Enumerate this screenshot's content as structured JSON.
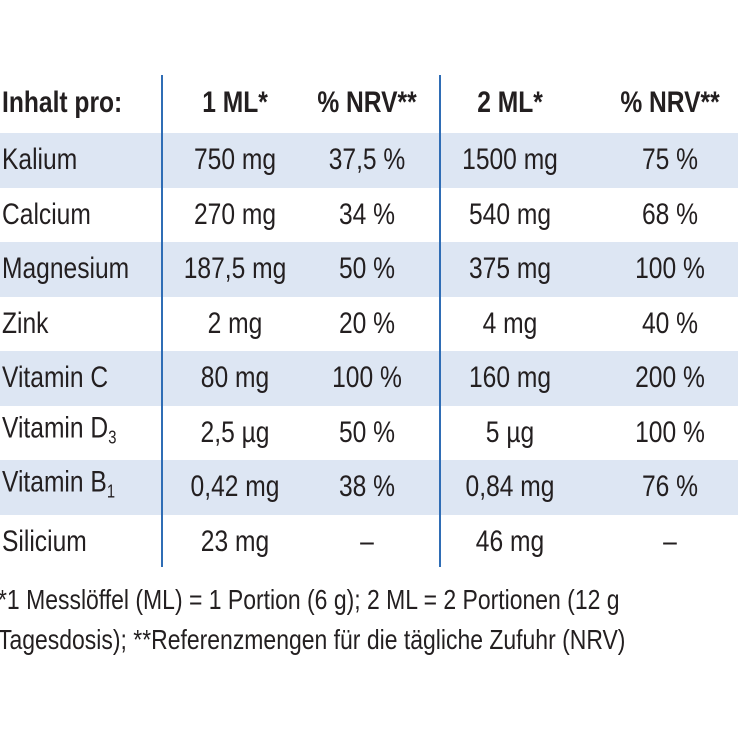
{
  "table": {
    "header": [
      "Inhalt pro:",
      "1 ML*",
      "% NRV**",
      "2 ML*",
      "% NRV**"
    ],
    "rows": [
      {
        "name": "Kalium",
        "cells": [
          "750 mg",
          "37,5 %",
          "1500 mg",
          "75 %"
        ]
      },
      {
        "name": "Calcium",
        "cells": [
          "270 mg",
          "34 %",
          "540 mg",
          "68 %"
        ]
      },
      {
        "name": "Magnesium",
        "cells": [
          "187,5 mg",
          "50 %",
          "375 mg",
          "100 %"
        ]
      },
      {
        "name": "Zink",
        "cells": [
          "2 mg",
          "20 %",
          "4 mg",
          "40 %"
        ]
      },
      {
        "name": "Vitamin C",
        "cells": [
          "80 mg",
          "100 %",
          "160 mg",
          "200 %"
        ]
      },
      {
        "name": "Vitamin D",
        "sub": "3",
        "cells": [
          "2,5 µg",
          "50 %",
          "5 µg",
          "100 %"
        ]
      },
      {
        "name": "Vitamin B",
        "sub": "1",
        "cells": [
          "0,42 mg",
          "38 %",
          "0,84 mg",
          "76 %"
        ]
      },
      {
        "name": "Silicium",
        "cells": [
          "23 mg",
          "–",
          "46 mg",
          "–"
        ]
      }
    ]
  },
  "footnote": [
    "*1 Messlöffel (ML) = 1 Portion (6 g); 2 ML = 2 Portionen (12 g",
    "Tagesdosis); **Referenzmengen für die tägliche Zufuhr (NRV)"
  ]
}
